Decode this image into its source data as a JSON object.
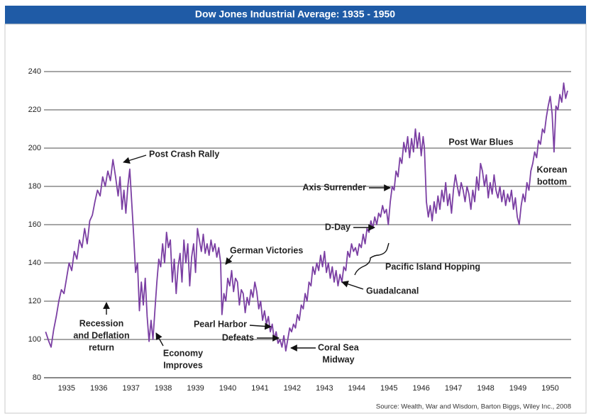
{
  "chart_data": {
    "type": "line",
    "title": "Dow Jones Industrial Average: 1935 - 1950",
    "source": "Source: Wealth, War and Wisdom, Barton Biggs, Wiley Inc., 2008",
    "color": "#7b3fa3",
    "grid": true,
    "xlim": [
      1934.8,
      1951.15
    ],
    "ylim": [
      80,
      240
    ],
    "yticks": [
      80,
      100,
      120,
      140,
      160,
      180,
      200,
      220,
      240
    ],
    "xticks": [
      {
        "value": 1935.5,
        "label": "1935"
      },
      {
        "value": 1936.5,
        "label": "1936"
      },
      {
        "value": 1937.5,
        "label": "1937"
      },
      {
        "value": 1938.5,
        "label": "1938"
      },
      {
        "value": 1939.5,
        "label": "1939"
      },
      {
        "value": 1940.5,
        "label": "1940"
      },
      {
        "value": 1941.5,
        "label": "1941"
      },
      {
        "value": 1942.5,
        "label": "1942"
      },
      {
        "value": 1943.5,
        "label": "1943"
      },
      {
        "value": 1944.5,
        "label": "1944"
      },
      {
        "value": 1945.5,
        "label": "1945"
      },
      {
        "value": 1946.5,
        "label": "1946"
      },
      {
        "value": 1947.5,
        "label": "1947"
      },
      {
        "value": 1948.5,
        "label": "1948"
      },
      {
        "value": 1949.5,
        "label": "1949"
      },
      {
        "value": 1950.5,
        "label": "1950"
      }
    ],
    "x": [
      1934.85,
      1934.95,
      1935.02,
      1935.1,
      1935.18,
      1935.26,
      1935.34,
      1935.42,
      1935.5,
      1935.58,
      1935.66,
      1935.74,
      1935.82,
      1935.9,
      1935.98,
      1936.06,
      1936.14,
      1936.22,
      1936.3,
      1936.38,
      1936.46,
      1936.54,
      1936.62,
      1936.7,
      1936.78,
      1936.86,
      1936.94,
      1937.02,
      1937.1,
      1937.16,
      1937.22,
      1937.28,
      1937.34,
      1937.4,
      1937.46,
      1937.52,
      1937.58,
      1937.64,
      1937.7,
      1937.76,
      1937.82,
      1937.88,
      1937.94,
      1938.0,
      1938.06,
      1938.12,
      1938.18,
      1938.24,
      1938.3,
      1938.36,
      1938.42,
      1938.48,
      1938.54,
      1938.6,
      1938.66,
      1938.72,
      1938.78,
      1938.84,
      1938.9,
      1938.96,
      1939.02,
      1939.08,
      1939.14,
      1939.2,
      1939.26,
      1939.32,
      1939.38,
      1939.44,
      1939.5,
      1939.56,
      1939.62,
      1939.68,
      1939.74,
      1939.8,
      1939.86,
      1939.92,
      1939.98,
      1940.04,
      1940.1,
      1940.16,
      1940.22,
      1940.28,
      1940.32,
      1940.38,
      1940.44,
      1940.5,
      1940.56,
      1940.62,
      1940.68,
      1940.74,
      1940.8,
      1940.86,
      1940.92,
      1940.98,
      1941.04,
      1941.1,
      1941.16,
      1941.22,
      1941.28,
      1941.34,
      1941.4,
      1941.46,
      1941.52,
      1941.58,
      1941.64,
      1941.7,
      1941.76,
      1941.82,
      1941.88,
      1941.94,
      1942.0,
      1942.06,
      1942.12,
      1942.18,
      1942.24,
      1942.3,
      1942.36,
      1942.42,
      1942.48,
      1942.54,
      1942.6,
      1942.66,
      1942.72,
      1942.78,
      1942.84,
      1942.9,
      1942.96,
      1943.02,
      1943.08,
      1943.14,
      1943.2,
      1943.26,
      1943.32,
      1943.38,
      1943.44,
      1943.5,
      1943.56,
      1943.62,
      1943.68,
      1943.74,
      1943.8,
      1943.86,
      1943.92,
      1943.98,
      1944.04,
      1944.1,
      1944.16,
      1944.22,
      1944.28,
      1944.34,
      1944.4,
      1944.46,
      1944.52,
      1944.58,
      1944.64,
      1944.7,
      1944.76,
      1944.82,
      1944.88,
      1944.94,
      1945.0,
      1945.06,
      1945.12,
      1945.18,
      1945.24,
      1945.3,
      1945.36,
      1945.42,
      1945.48,
      1945.54,
      1945.6,
      1945.66,
      1945.72,
      1945.78,
      1945.84,
      1945.9,
      1945.96,
      1946.02,
      1946.08,
      1946.14,
      1946.2,
      1946.26,
      1946.32,
      1946.38,
      1946.44,
      1946.5,
      1946.56,
      1946.6,
      1946.66,
      1946.72,
      1946.78,
      1946.84,
      1946.9,
      1946.96,
      1947.02,
      1947.08,
      1947.14,
      1947.2,
      1947.26,
      1947.32,
      1947.38,
      1947.44,
      1947.5,
      1947.56,
      1947.62,
      1947.68,
      1947.74,
      1947.8,
      1947.86,
      1947.92,
      1947.98,
      1948.04,
      1948.1,
      1948.16,
      1948.22,
      1948.28,
      1948.34,
      1948.4,
      1948.46,
      1948.52,
      1948.58,
      1948.64,
      1948.7,
      1948.76,
      1948.82,
      1948.88,
      1948.94,
      1949.0,
      1949.06,
      1949.12,
      1949.18,
      1949.24,
      1949.3,
      1949.36,
      1949.42,
      1949.48,
      1949.54,
      1949.6,
      1949.66,
      1949.72,
      1949.78,
      1949.84,
      1949.9,
      1949.96,
      1950.02,
      1950.08,
      1950.14,
      1950.2,
      1950.26,
      1950.32,
      1950.38,
      1950.44,
      1950.5,
      1950.56,
      1950.62,
      1950.68,
      1950.74,
      1950.8,
      1950.86,
      1950.92,
      1950.98,
      1951.04
    ],
    "values": [
      104,
      99,
      96,
      105,
      112,
      120,
      126,
      124,
      132,
      140,
      136,
      146,
      142,
      152,
      148,
      158,
      150,
      162,
      165,
      172,
      178,
      175,
      185,
      180,
      188,
      183,
      194,
      185,
      175,
      185,
      168,
      178,
      166,
      180,
      189,
      172,
      155,
      135,
      140,
      115,
      130,
      118,
      132,
      112,
      99,
      110,
      100,
      115,
      130,
      142,
      138,
      150,
      140,
      156,
      148,
      152,
      130,
      142,
      124,
      138,
      145,
      130,
      152,
      140,
      150,
      128,
      143,
      150,
      135,
      158,
      152,
      146,
      155,
      145,
      150,
      144,
      152,
      146,
      150,
      143,
      148,
      140,
      113,
      124,
      120,
      132,
      128,
      136,
      125,
      132,
      130,
      118,
      126,
      124,
      114,
      122,
      118,
      126,
      122,
      130,
      125,
      116,
      120,
      110,
      115,
      108,
      112,
      104,
      108,
      100,
      104,
      98,
      100,
      96,
      102,
      94,
      100,
      106,
      104,
      108,
      106,
      113,
      110,
      118,
      116,
      124,
      120,
      130,
      128,
      138,
      134,
      140,
      136,
      144,
      138,
      146,
      135,
      140,
      132,
      138,
      130,
      136,
      128,
      134,
      130,
      138,
      136,
      146,
      143,
      150,
      146,
      148,
      144,
      150,
      148,
      155,
      150,
      158,
      156,
      162,
      158,
      164,
      160,
      166,
      164,
      170,
      166,
      168,
      160,
      172,
      180,
      178,
      188,
      185,
      195,
      192,
      203,
      198,
      206,
      195,
      205,
      198,
      210,
      200,
      208,
      196,
      206,
      200,
      172,
      164,
      170,
      162,
      172,
      166,
      175,
      168,
      178,
      172,
      182,
      170,
      176,
      166,
      178,
      186,
      180,
      175,
      182,
      178,
      172,
      180,
      176,
      168,
      178,
      172,
      185,
      178,
      192,
      188,
      180,
      186,
      174,
      182,
      176,
      186,
      178,
      174,
      180,
      172,
      178,
      170,
      176,
      172,
      178,
      168,
      174,
      164,
      160,
      170,
      176,
      172,
      182,
      178,
      188,
      192,
      198,
      195,
      204,
      202,
      210,
      208,
      216,
      222,
      227,
      218,
      198,
      222,
      220,
      228,
      224,
      234,
      226,
      230
    ],
    "annotations": [
      [
        "Post Crash Rally"
      ],
      [
        "Recession",
        "and Deflation",
        "return"
      ],
      [
        "Economy",
        "Improves"
      ],
      [
        "German Victories"
      ],
      [
        "Pearl Harbor"
      ],
      [
        "Defeats"
      ],
      [
        "Coral Sea",
        "Midway"
      ],
      [
        "Guadalcanal"
      ],
      [
        "D-Day"
      ],
      [
        "Pacific Island Hopping"
      ],
      [
        "Axis Surrender"
      ],
      [
        "Post War Blues"
      ],
      [
        "Korean",
        "bottom"
      ]
    ]
  }
}
